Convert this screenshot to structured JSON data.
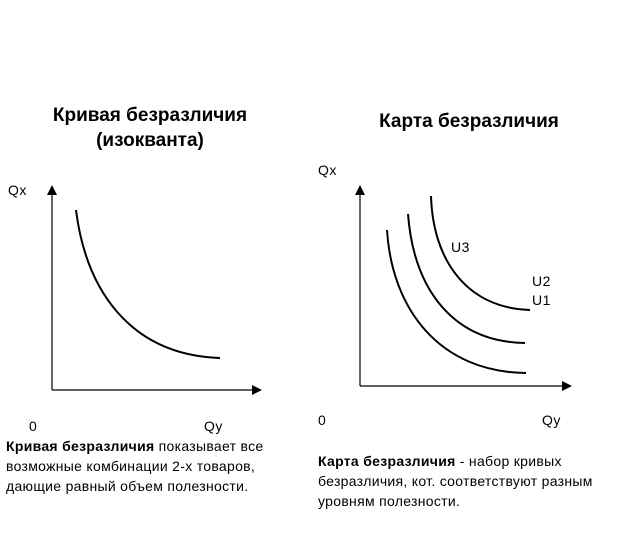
{
  "left_panel": {
    "title_line1": "Кривая безразличия",
    "title_line2": "(изокванта)",
    "y_axis_label": "Qx",
    "x_axis_label": "Qy",
    "origin_label": "0",
    "desc_bold": "Кривая безразличия",
    "desc_text": " показывает все возможные комбинации 2-х товаров, дающие равный объем полезности."
  },
  "right_panel": {
    "title": "Карта  безразличия",
    "y_axis_label": "Qx",
    "x_axis_label": "Qy",
    "origin_label": "0",
    "curve_labels": [
      "U3",
      "U2",
      "U1"
    ],
    "desc_bold": "Карта безразличия",
    "desc_text": " - набор кривых безразличия, кот. соответствуют разным уровням полезности."
  }
}
